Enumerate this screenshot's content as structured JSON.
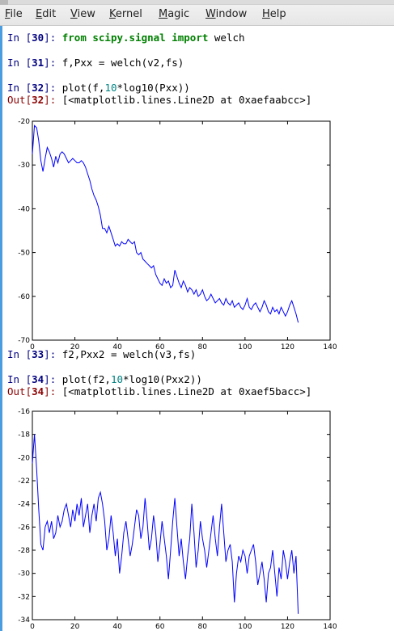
{
  "menu": {
    "items": [
      {
        "label": "File",
        "mnemonic": "F"
      },
      {
        "label": "Edit",
        "mnemonic": "E"
      },
      {
        "label": "View",
        "mnemonic": "V"
      },
      {
        "label": "Kernel",
        "mnemonic": "K"
      },
      {
        "label": "Magic",
        "mnemonic": "M"
      },
      {
        "label": "Window",
        "mnemonic": "W"
      },
      {
        "label": "Help",
        "mnemonic": "H"
      }
    ]
  },
  "cells": [
    {
      "in_prompt": "In [",
      "in_num": "30",
      "in_close": "]: ",
      "code_kw1": "from",
      "code_mod": " scipy.signal ",
      "code_kw2": "import",
      "code_rest": " welch"
    },
    {
      "in_prompt": "In [",
      "in_num": "31",
      "in_close": "]: ",
      "code": "f,Pxx = welch(v2,fs)"
    },
    {
      "in_prompt": "In [",
      "in_num": "32",
      "in_close": "]: ",
      "code_a": "plot(f,",
      "code_num": "10",
      "code_b": "*log10(Pxx))",
      "out_prompt": "Out[",
      "out_num": "32",
      "out_close": "]: ",
      "out_text": "[<matplotlib.lines.Line2D at 0xaefaabcc>]"
    },
    {
      "in_prompt": "In [",
      "in_num": "33",
      "in_close": "]: ",
      "code": "f2,Pxx2 = welch(v3,fs)"
    },
    {
      "in_prompt": "In [",
      "in_num": "34",
      "in_close": "]: ",
      "code_a": "plot(f2,",
      "code_num": "10",
      "code_b": "*log10(Pxx2))",
      "out_prompt": "Out[",
      "out_num": "34",
      "out_close": "]: ",
      "out_text": "[<matplotlib.lines.Line2D at 0xaef5bacc>]"
    }
  ],
  "colors": {
    "line": "#0000ff",
    "input_prompt": "#000080",
    "output_prompt": "#8b0000",
    "keyword": "#008000",
    "number": "#008080",
    "accent_border": "#4a9ee0"
  },
  "chart_data": [
    {
      "type": "line",
      "title": "",
      "xlabel": "",
      "ylabel": "",
      "xlim": [
        0,
        140
      ],
      "ylim": [
        -70,
        -20
      ],
      "xticks": [
        "0",
        "20",
        "40",
        "60",
        "80",
        "100",
        "120",
        "140"
      ],
      "yticks": [
        "-70",
        "-60",
        "-50",
        "-40",
        "-30",
        "-20"
      ],
      "grid": false,
      "series": [
        {
          "x": [
            0,
            1,
            2,
            3,
            4,
            5,
            6,
            7,
            8,
            9,
            10,
            11,
            12,
            13,
            14,
            15,
            16,
            17,
            18,
            19,
            20,
            21,
            22,
            23,
            24,
            25,
            26,
            27,
            28,
            29,
            30,
            31,
            32,
            33,
            34,
            35,
            36,
            37,
            38,
            39,
            40,
            41,
            42,
            43,
            44,
            45,
            46,
            47,
            48,
            49,
            50,
            51,
            52,
            53,
            54,
            55,
            56,
            57,
            58,
            59,
            60,
            61,
            62,
            63,
            64,
            65,
            66,
            67,
            68,
            69,
            70,
            71,
            72,
            73,
            74,
            75,
            76,
            77,
            78,
            79,
            80,
            81,
            82,
            83,
            84,
            85,
            86,
            87,
            88,
            89,
            90,
            91,
            92,
            93,
            94,
            95,
            96,
            97,
            98,
            99,
            100,
            101,
            102,
            103,
            104,
            105,
            106,
            107,
            108,
            109,
            110,
            111,
            112,
            113,
            114,
            115,
            116,
            117,
            118,
            119,
            120,
            121,
            122,
            123,
            124,
            125
          ],
          "y": [
            -27.5,
            -21.0,
            -21.5,
            -24.5,
            -29.0,
            -31.5,
            -28.5,
            -26.0,
            -27.0,
            -28.5,
            -30.5,
            -28.0,
            -29.5,
            -27.5,
            -27.0,
            -27.5,
            -28.5,
            -29.5,
            -29.0,
            -28.5,
            -29.0,
            -29.5,
            -29.5,
            -29.0,
            -29.5,
            -30.5,
            -32.0,
            -33.5,
            -35.5,
            -37.0,
            -38.0,
            -39.5,
            -41.5,
            -44.5,
            -44.5,
            -45.5,
            -44.0,
            -45.5,
            -47.0,
            -48.5,
            -48.0,
            -48.5,
            -47.5,
            -48.0,
            -48.0,
            -47.0,
            -47.5,
            -48.0,
            -47.5,
            -50.0,
            -50.5,
            -50.0,
            -51.5,
            -52.0,
            -52.5,
            -53.0,
            -53.5,
            -53.0,
            -55.0,
            -56.0,
            -57.0,
            -57.5,
            -56.0,
            -57.0,
            -56.5,
            -58.0,
            -57.5,
            -54.0,
            -55.5,
            -57.0,
            -58.0,
            -56.5,
            -57.5,
            -59.0,
            -58.0,
            -58.5,
            -59.5,
            -58.5,
            -60.0,
            -59.5,
            -58.5,
            -60.0,
            -61.0,
            -60.5,
            -59.5,
            -60.5,
            -61.5,
            -61.0,
            -60.5,
            -61.5,
            -62.0,
            -60.5,
            -61.5,
            -62.0,
            -61.0,
            -62.5,
            -62.0,
            -61.5,
            -62.5,
            -63.0,
            -62.0,
            -60.5,
            -62.5,
            -63.0,
            -62.0,
            -61.5,
            -62.5,
            -63.5,
            -62.5,
            -61.0,
            -62.0,
            -63.5,
            -64.0,
            -62.5,
            -63.5,
            -63.0,
            -64.0,
            -62.5,
            -63.5,
            -64.5,
            -63.5,
            -62.0,
            -61.0,
            -62.5,
            -64.0,
            -66.0
          ]
        }
      ]
    },
    {
      "type": "line",
      "title": "",
      "xlabel": "",
      "ylabel": "",
      "xlim": [
        0,
        140
      ],
      "ylim": [
        -34,
        -16
      ],
      "xticks": [
        "0",
        "20",
        "40",
        "60",
        "80",
        "100",
        "120",
        "140"
      ],
      "yticks": [
        "-34",
        "-32",
        "-30",
        "-28",
        "-26",
        "-24",
        "-22",
        "-20",
        "-18",
        "-16"
      ],
      "grid": false,
      "series": [
        {
          "x": [
            0,
            1,
            2,
            3,
            4,
            5,
            6,
            7,
            8,
            9,
            10,
            11,
            12,
            13,
            14,
            15,
            16,
            17,
            18,
            19,
            20,
            21,
            22,
            23,
            24,
            25,
            26,
            27,
            28,
            29,
            30,
            31,
            32,
            33,
            34,
            35,
            36,
            37,
            38,
            39,
            40,
            41,
            42,
            43,
            44,
            45,
            46,
            47,
            48,
            49,
            50,
            51,
            52,
            53,
            54,
            55,
            56,
            57,
            58,
            59,
            60,
            61,
            62,
            63,
            64,
            65,
            66,
            67,
            68,
            69,
            70,
            71,
            72,
            73,
            74,
            75,
            76,
            77,
            78,
            79,
            80,
            81,
            82,
            83,
            84,
            85,
            86,
            87,
            88,
            89,
            90,
            91,
            92,
            93,
            94,
            95,
            96,
            97,
            98,
            99,
            100,
            101,
            102,
            103,
            104,
            105,
            106,
            107,
            108,
            109,
            110,
            111,
            112,
            113,
            114,
            115,
            116,
            117,
            118,
            119,
            120,
            121,
            122,
            123,
            124,
            125
          ],
          "y": [
            -20.5,
            -18.0,
            -21.0,
            -24.5,
            -27.5,
            -28.0,
            -26.0,
            -25.5,
            -26.5,
            -25.5,
            -27.0,
            -26.5,
            -25.0,
            -26.0,
            -25.5,
            -24.5,
            -24.0,
            -25.0,
            -26.0,
            -24.5,
            -25.5,
            -24.0,
            -25.0,
            -23.5,
            -26.0,
            -25.0,
            -24.0,
            -26.5,
            -25.0,
            -24.0,
            -25.5,
            -23.5,
            -23.0,
            -24.0,
            -25.5,
            -28.0,
            -27.0,
            -25.0,
            -26.5,
            -28.5,
            -27.0,
            -30.0,
            -28.5,
            -26.5,
            -25.5,
            -27.0,
            -28.5,
            -27.5,
            -26.0,
            -24.5,
            -25.0,
            -27.0,
            -26.0,
            -23.5,
            -25.5,
            -28.0,
            -27.0,
            -25.0,
            -26.5,
            -29.0,
            -27.5,
            -25.5,
            -27.0,
            -28.5,
            -30.5,
            -28.0,
            -25.5,
            -23.5,
            -26.0,
            -28.5,
            -27.0,
            -29.0,
            -30.5,
            -28.5,
            -27.0,
            -24.0,
            -26.5,
            -29.5,
            -28.0,
            -25.5,
            -27.0,
            -28.0,
            -29.5,
            -28.0,
            -26.5,
            -25.0,
            -27.0,
            -28.5,
            -26.0,
            -24.0,
            -26.5,
            -29.0,
            -28.0,
            -27.5,
            -29.0,
            -32.5,
            -30.0,
            -28.5,
            -29.0,
            -28.0,
            -28.5,
            -30.0,
            -28.5,
            -28.0,
            -27.5,
            -29.0,
            -31.0,
            -30.0,
            -29.0,
            -30.5,
            -32.5,
            -30.0,
            -29.5,
            -28.0,
            -30.0,
            -32.0,
            -29.5,
            -30.5,
            -28.0,
            -29.0,
            -30.5,
            -29.0,
            -28.0,
            -30.0,
            -28.5,
            -33.5
          ]
        }
      ]
    }
  ]
}
